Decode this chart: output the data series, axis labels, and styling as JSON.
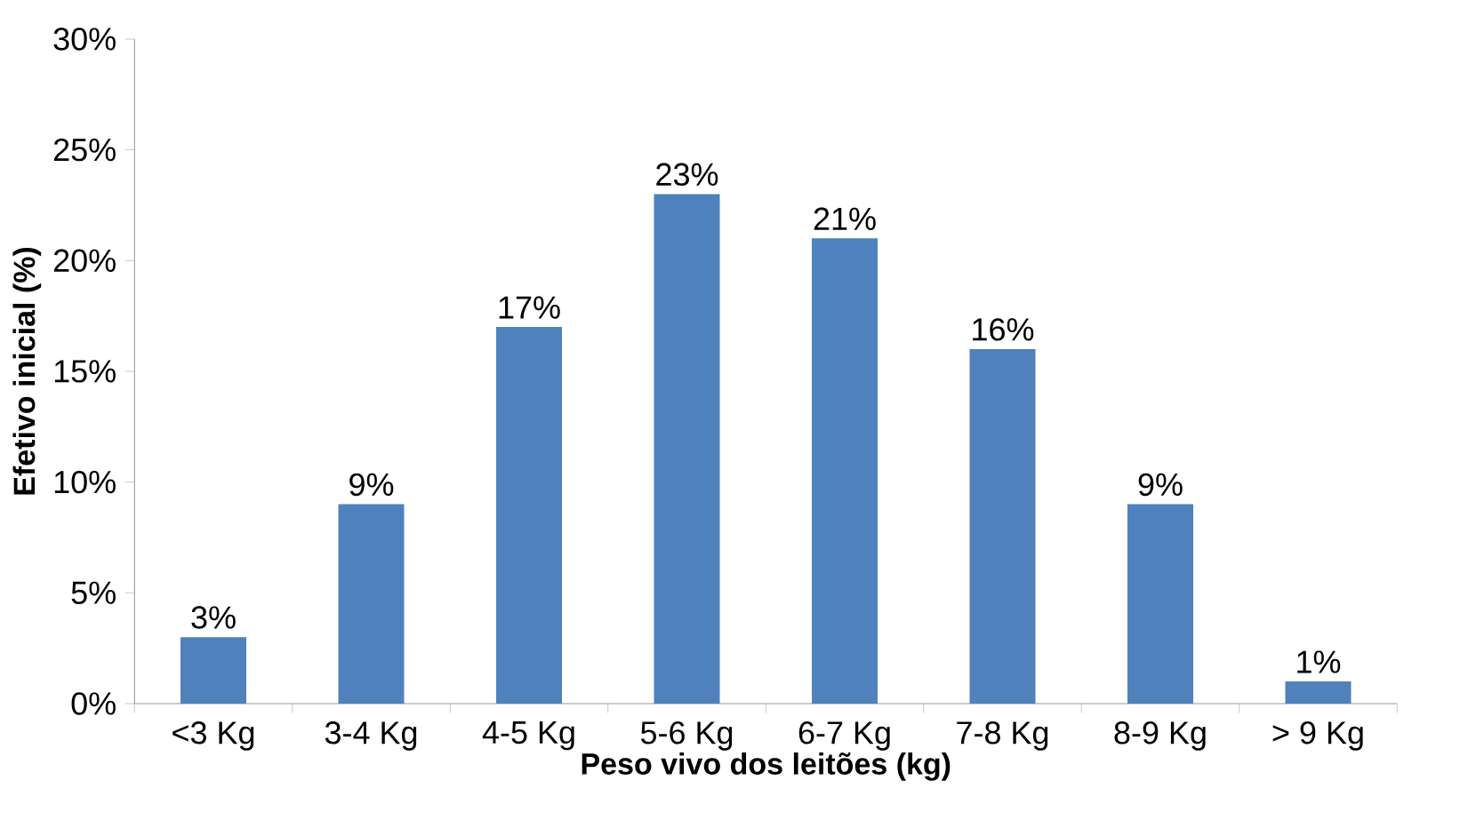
{
  "chart_data": {
    "type": "bar",
    "xlabel": "Peso vivo dos leitões (kg)",
    "ylabel": "Efetivo inicial (%)",
    "categories": [
      "<3 Kg",
      "3-4 Kg",
      "4-5 Kg",
      "5-6 Kg",
      "6-7 Kg",
      "7-8 Kg",
      "8-9 Kg",
      "> 9 Kg"
    ],
    "values": [
      3,
      9,
      17,
      23,
      21,
      16,
      9,
      1
    ],
    "value_labels": [
      "3%",
      "9%",
      "17%",
      "23%",
      "21%",
      "16%",
      "9%",
      "1%"
    ],
    "color": "#4f81bd",
    "ylim": [
      0,
      30
    ],
    "yticks": [
      {
        "value": 0,
        "label": "0%"
      },
      {
        "value": 5,
        "label": "5%"
      },
      {
        "value": 10,
        "label": "10%"
      },
      {
        "value": 15,
        "label": "15%"
      },
      {
        "value": 20,
        "label": "20%"
      },
      {
        "value": 25,
        "label": "25%"
      },
      {
        "value": 30,
        "label": "30%"
      }
    ]
  }
}
